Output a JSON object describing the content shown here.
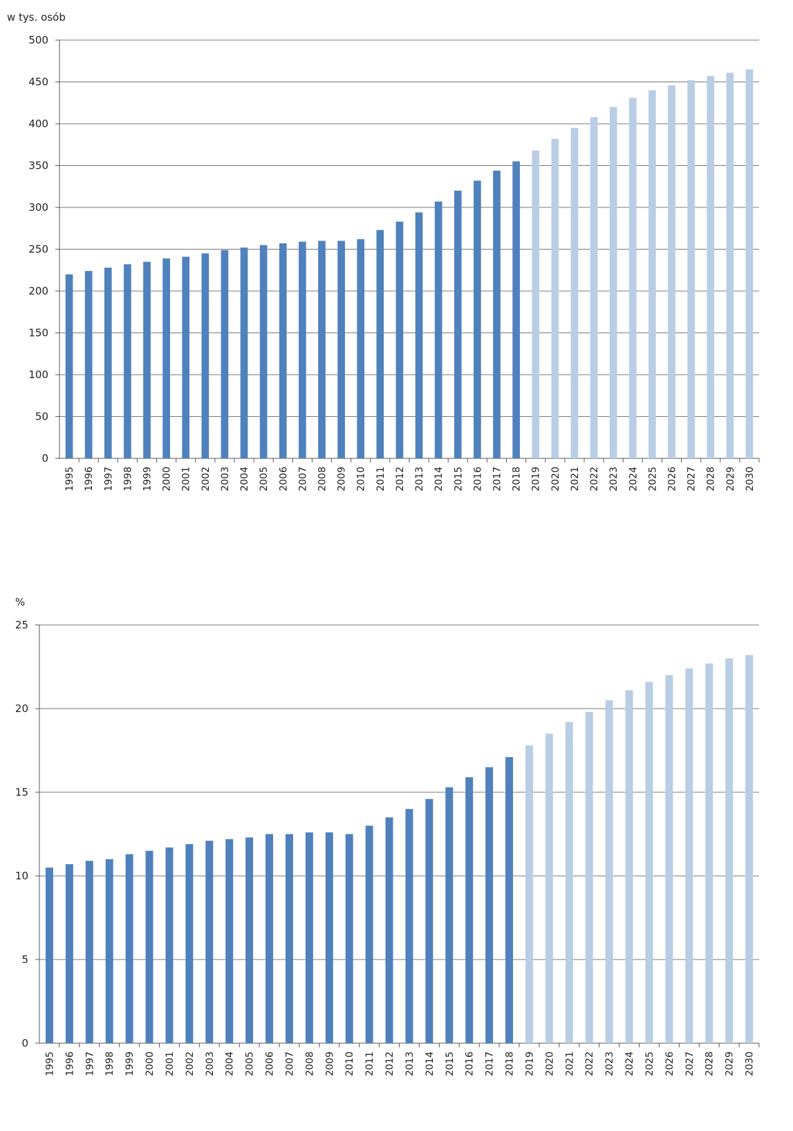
{
  "colors": {
    "actual": "#4f81bd",
    "forecast": "#b9cde5"
  },
  "chart_data": [
    {
      "type": "bar",
      "unit_label": "w tys. osób",
      "ylim": [
        0,
        500
      ],
      "y_ticks": [
        0,
        50,
        100,
        150,
        200,
        250,
        300,
        350,
        400,
        450,
        500
      ],
      "grid": true,
      "categories": [
        "1995",
        "1996",
        "1997",
        "1998",
        "1999",
        "2000",
        "2001",
        "2002",
        "2003",
        "2004",
        "2005",
        "2006",
        "2007",
        "2008",
        "2009",
        "2010",
        "2011",
        "2012",
        "2013",
        "2014",
        "2015",
        "2016",
        "2017",
        "2018",
        "2019",
        "2020",
        "2021",
        "2022",
        "2023",
        "2024",
        "2025",
        "2026",
        "2027",
        "2028",
        "2029",
        "2030"
      ],
      "values": [
        220,
        224,
        228,
        232,
        235,
        239,
        241,
        245,
        249,
        252,
        255,
        257,
        259,
        260,
        260,
        262,
        273,
        283,
        294,
        307,
        320,
        332,
        344,
        355,
        368,
        382,
        395,
        408,
        420,
        431,
        440,
        446,
        452,
        457,
        461,
        465
      ],
      "forecast_from": "2019"
    },
    {
      "type": "bar",
      "unit_label": "%",
      "ylim": [
        0,
        25
      ],
      "y_ticks": [
        0,
        5,
        10,
        15,
        20,
        25
      ],
      "grid": true,
      "categories": [
        "1995",
        "1996",
        "1997",
        "1998",
        "1999",
        "2000",
        "2001",
        "2002",
        "2003",
        "2004",
        "2005",
        "2006",
        "2007",
        "2008",
        "2009",
        "2010",
        "2011",
        "2012",
        "2013",
        "2014",
        "2015",
        "2016",
        "2017",
        "2018",
        "2019",
        "2020",
        "2021",
        "2022",
        "2023",
        "2024",
        "2025",
        "2026",
        "2027",
        "2028",
        "2029",
        "2030"
      ],
      "values": [
        10.5,
        10.7,
        10.9,
        11.0,
        11.3,
        11.5,
        11.7,
        11.9,
        12.1,
        12.2,
        12.3,
        12.5,
        12.5,
        12.6,
        12.6,
        12.5,
        13.0,
        13.5,
        14.0,
        14.6,
        15.3,
        15.9,
        16.5,
        17.1,
        17.8,
        18.5,
        19.2,
        19.8,
        20.5,
        21.1,
        21.6,
        22.0,
        22.4,
        22.7,
        23.0,
        23.2
      ],
      "forecast_from": "2019"
    }
  ]
}
